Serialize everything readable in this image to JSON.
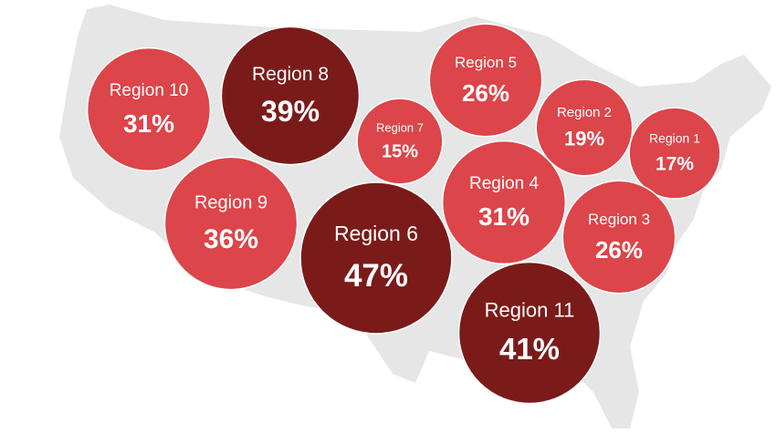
{
  "chart_data": {
    "type": "bubble",
    "categories": [
      "Region 10",
      "Region 8",
      "Region 7",
      "Region 5",
      "Region 2",
      "Region 1",
      "Region 9",
      "Region 6",
      "Region 4",
      "Region 3",
      "Region 11"
    ],
    "values": [
      31,
      39,
      15,
      26,
      19,
      17,
      36,
      47,
      31,
      26,
      41
    ],
    "value_labels": [
      "31%",
      "39%",
      "15%",
      "26%",
      "19%",
      "17%",
      "36%",
      "47%",
      "31%",
      "26%",
      "41%"
    ],
    "colors": [
      "#dc4549",
      "#7a1b1a",
      "#dc4549",
      "#dc4549",
      "#dc4549",
      "#dc4549",
      "#dc4549",
      "#7a1b1a",
      "#dc4549",
      "#dc4549",
      "#7a1b1a"
    ]
  }
}
